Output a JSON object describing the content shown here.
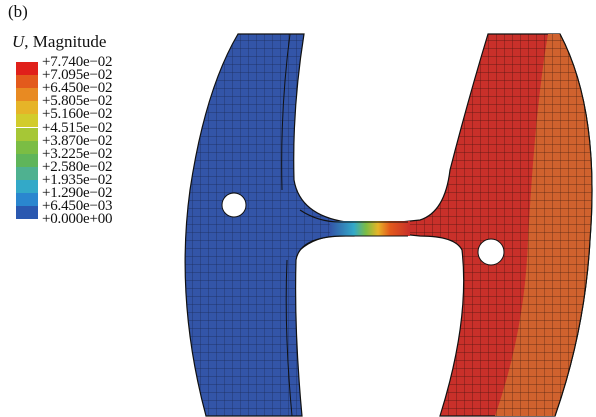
{
  "panel_label": "(b)",
  "legend": {
    "title_var": "U",
    "title_rest": ", Magnitude",
    "entries": [
      {
        "label": "+7.740e−02",
        "color": "#e0201a"
      },
      {
        "label": "+7.095e−02",
        "color": "#e35a1c"
      },
      {
        "label": "+6.450e−02",
        "color": "#e88a22"
      },
      {
        "label": "+5.805e−02",
        "color": "#e6b428"
      },
      {
        "label": "+5.160e−02",
        "color": "#d2cc2c"
      },
      {
        "label": "+4.515e−02",
        "color": "#a6c736"
      },
      {
        "label": "+3.870e−02",
        "color": "#7bbd44"
      },
      {
        "label": "+3.225e−02",
        "color": "#5fb55a"
      },
      {
        "label": "+2.580e−02",
        "color": "#4fb190"
      },
      {
        "label": "+1.935e−02",
        "color": "#33a9c8"
      },
      {
        "label": "+1.290e−02",
        "color": "#2a86cf"
      },
      {
        "label": "+6.450e−03",
        "color": "#2a58b0"
      },
      {
        "label": "+0.000e+00",
        "color": ""
      }
    ]
  },
  "colors": {
    "left_ring": "#3355a8",
    "right_ring_inner": "#c9302a",
    "right_ring_outer": "#d0622e",
    "mesh": "#1a1a1a"
  }
}
